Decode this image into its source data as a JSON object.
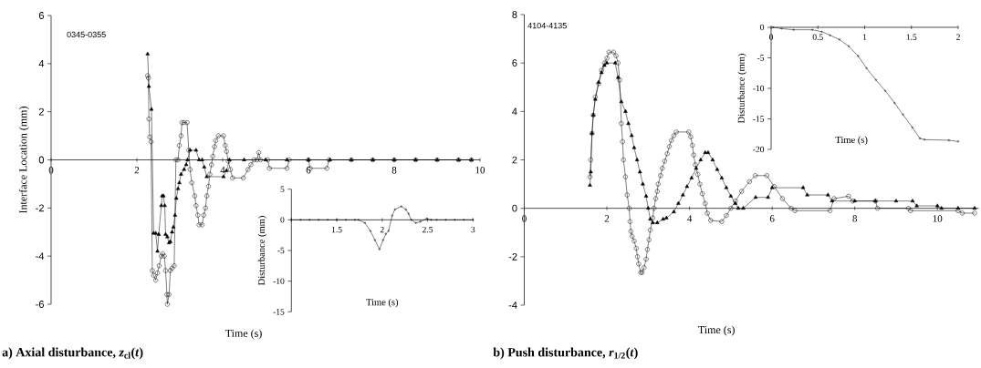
{
  "chart_data": [
    {
      "type": "line",
      "title": "a) Axial disturbance, *z*$_{cl}$(*t*)",
      "xlabel": "Time (s)",
      "ylabel": "Interface Location (mm)",
      "annotations": [
        "0345-0355"
      ],
      "xlim": [
        0,
        10
      ],
      "ylim": [
        -6,
        6
      ],
      "xticks": [
        0,
        2,
        4,
        6,
        8,
        10
      ],
      "yticks": [
        -6,
        -4,
        -2,
        0,
        2,
        4,
        6
      ],
      "series": [
        {
          "color": "#000000",
          "marker": "circle",
          "x": [
            2.25,
            2.27,
            2.28,
            2.3,
            2.33,
            2.36,
            2.39,
            2.44,
            2.48,
            2.52,
            2.57,
            2.6,
            2.64,
            2.67,
            2.7,
            2.71,
            2.75,
            2.78,
            2.82,
            2.87,
            2.91,
            2.96,
            2.99,
            3.03,
            3.05,
            3.1,
            3.17,
            3.21,
            3.24,
            3.28,
            3.35,
            3.38,
            3.42,
            3.45,
            3.52,
            3.56,
            3.6,
            3.63,
            3.67,
            3.7,
            3.74,
            3.77,
            3.81,
            3.84,
            3.9,
            4.02,
            4.06,
            4.09,
            4.13,
            4.18,
            4.23,
            4.48,
            4.59,
            4.66,
            4.73,
            4.8,
            4.84,
            4.88,
            5.05,
            5.09,
            5.5,
            5.55,
            6.0,
            6.04,
            6.43,
            6.48,
            7.0,
            7.5,
            8.0,
            8.5,
            9.0,
            9.5,
            9.8
          ],
          "values": [
            3.5,
            3.4,
            1.7,
            0.95,
            0.75,
            -4.6,
            -4.8,
            -5.0,
            -4.7,
            -4.4,
            -4.0,
            -3.9,
            -4.0,
            -4.6,
            -5.6,
            -6.0,
            -5.6,
            -4.6,
            -4.5,
            -4.4,
            0.0,
            0.0,
            0.6,
            1.0,
            1.55,
            1.55,
            1.55,
            0.4,
            -0.4,
            -0.95,
            -1.5,
            -1.9,
            -2.3,
            -2.7,
            -2.7,
            -2.3,
            -2.0,
            -1.5,
            -1.1,
            -0.6,
            -0.2,
            0.15,
            0.55,
            0.8,
            1.0,
            1.0,
            0.6,
            0.35,
            -0.05,
            -0.4,
            -0.75,
            -0.75,
            -0.4,
            -0.2,
            0.0,
            0.0,
            0.3,
            0.0,
            0.0,
            -0.35,
            -0.35,
            0.0,
            0.0,
            -0.35,
            -0.35,
            0.0,
            0,
            0,
            0,
            0,
            0,
            0,
            0
          ]
        },
        {
          "color": "#000000",
          "marker": "triangle",
          "x": [
            2.25,
            2.28,
            2.34,
            2.39,
            2.44,
            2.48,
            2.51,
            2.57,
            2.59,
            2.62,
            2.65,
            2.67,
            2.71,
            2.75,
            2.78,
            2.82,
            2.85,
            2.89,
            2.92,
            2.96,
            2.99,
            3.03,
            3.1,
            3.15,
            3.18,
            3.24,
            3.38,
            3.45,
            3.52,
            3.57,
            3.63,
            4.02,
            4.09,
            4.16,
            4.5,
            5.0,
            5.5,
            6.0,
            6.5,
            7.0,
            7.5,
            8.0,
            8.5,
            9.0,
            9.5,
            9.8
          ],
          "values": [
            4.4,
            3.05,
            2.1,
            -3.05,
            -3.05,
            -3.8,
            -3.1,
            -1.9,
            -1.5,
            -1.5,
            -1.9,
            -3.1,
            -3.2,
            -3.45,
            -3.4,
            -3.0,
            -2.8,
            -2.3,
            -1.6,
            -1.2,
            -0.95,
            -0.6,
            -0.4,
            -0.2,
            0.0,
            0.4,
            0.4,
            0.0,
            0.0,
            -0.3,
            -0.7,
            -0.7,
            -0.45,
            0.0,
            0,
            0,
            0,
            0,
            0,
            0,
            0,
            0,
            0,
            0,
            0,
            0
          ]
        }
      ]
    },
    {
      "type": "line",
      "xlabel": "Time (s)",
      "ylabel": "Disturbance (mm)",
      "xlim": [
        1,
        3
      ],
      "ylim": [
        -15,
        5
      ],
      "xticks": [
        {
          "value": 1,
          "label": null
        },
        1.5,
        2,
        2.5,
        3
      ],
      "yticks": [
        -15,
        -10,
        -5,
        0,
        5
      ],
      "series": [
        {
          "color": "#000000",
          "marker": "circle",
          "x": [
            1.0,
            1.1,
            1.2,
            1.3,
            1.4,
            1.5,
            1.6,
            1.7,
            1.74,
            1.81,
            1.87,
            1.92,
            1.97,
            2.01,
            2.04,
            2.07,
            2.11,
            2.14,
            2.21,
            2.26,
            2.29,
            2.32,
            2.37,
            2.42,
            2.49,
            2.54,
            2.6,
            2.7,
            2.8,
            2.9,
            3.0
          ],
          "values": [
            0,
            0,
            0,
            0,
            0,
            0,
            0,
            0,
            0,
            -0.5,
            -1.8,
            -3.3,
            -4.8,
            -3.3,
            -2.3,
            -1.8,
            0.7,
            1.7,
            2.2,
            1.7,
            1,
            0,
            -0.5,
            -0.3,
            0.2,
            0,
            0,
            0,
            0,
            0,
            0
          ]
        }
      ]
    },
    {
      "type": "line",
      "title": "b) Push disturbance, *r*$_{1/2}$(*t*)",
      "xlabel": "Time (s)",
      "annotations": [
        "4104-4135"
      ],
      "xlim": [
        0,
        11
      ],
      "ylim": [
        -4,
        8
      ],
      "xticks": [
        0,
        2,
        4,
        6,
        8,
        10
      ],
      "yticks": [
        -4,
        -2,
        0,
        2,
        4,
        6,
        8
      ],
      "series": [
        {
          "color": "#000000",
          "marker": "circle",
          "x": [
            1.59,
            1.61,
            1.64,
            1.67,
            1.72,
            1.8,
            1.87,
            1.94,
            2.0,
            2.05,
            2.16,
            2.22,
            2.27,
            2.31,
            2.35,
            2.38,
            2.4,
            2.45,
            2.49,
            2.54,
            2.56,
            2.58,
            2.61,
            2.66,
            2.71,
            2.74,
            2.77,
            2.82,
            2.85,
            2.9,
            2.95,
            2.98,
            3.02,
            3.05,
            3.11,
            3.14,
            3.18,
            3.22,
            3.24,
            3.3,
            3.34,
            3.4,
            3.46,
            3.51,
            3.56,
            3.62,
            3.68,
            3.98,
            4.03,
            4.07,
            4.1,
            4.14,
            4.2,
            4.25,
            4.31,
            4.38,
            4.43,
            4.51,
            4.78,
            4.89,
            5.0,
            5.11,
            5.26,
            5.45,
            5.59,
            5.87,
            6.05,
            6.25,
            6.46,
            6.55,
            7.4,
            7.5,
            7.85,
            7.95,
            8.5,
            8.55,
            9.3,
            9.35,
            10.5,
            10.6,
            10.9
          ],
          "values": [
            1.3,
            2.0,
            3.1,
            3.85,
            4.6,
            5.15,
            5.7,
            6.0,
            6.2,
            6.45,
            6.45,
            6.3,
            6.0,
            5.3,
            3.5,
            2.75,
            2.0,
            1.3,
            0.55,
            0.0,
            -0.55,
            -0.95,
            -1.15,
            -1.35,
            -1.65,
            -2.0,
            -2.3,
            -2.65,
            -2.65,
            -2.45,
            -2.1,
            -1.7,
            -1.3,
            -0.9,
            -0.4,
            0.0,
            0.4,
            0.7,
            1.0,
            1.35,
            1.65,
            1.95,
            2.25,
            2.55,
            2.8,
            3.0,
            3.15,
            3.15,
            2.95,
            2.6,
            2.2,
            1.8,
            1.4,
            1.0,
            0.6,
            0.2,
            -0.2,
            -0.5,
            -0.55,
            -0.3,
            0.0,
            0.3,
            0.7,
            1.1,
            1.35,
            1.35,
            0.9,
            0.4,
            0.0,
            -0.1,
            -0.1,
            0.4,
            0.5,
            0.3,
            0.3,
            0.0,
            0.0,
            -0.1,
            -0.1,
            -0.2,
            -0.2
          ]
        },
        {
          "color": "#000000",
          "marker": "triangle",
          "x": [
            1.59,
            1.61,
            1.64,
            1.67,
            1.72,
            1.8,
            1.87,
            1.94,
            2.0,
            2.2,
            2.27,
            2.35,
            2.45,
            2.52,
            2.6,
            2.66,
            2.73,
            2.8,
            2.87,
            2.95,
            3.0,
            3.05,
            3.11,
            3.22,
            3.36,
            3.44,
            3.62,
            3.73,
            3.84,
            3.94,
            4.05,
            4.16,
            4.27,
            4.38,
            4.45,
            4.56,
            4.67,
            4.78,
            4.89,
            5.0,
            5.11,
            5.18,
            5.3,
            5.6,
            5.9,
            6.0,
            6.75,
            6.85,
            7.35,
            7.45,
            8.0,
            8.5,
            9.0,
            9.4,
            9.5,
            10.0,
            10.1,
            10.5,
            10.9
          ],
          "values": [
            0.95,
            1.5,
            3.1,
            3.85,
            4.5,
            5.2,
            5.6,
            5.9,
            6.0,
            6.0,
            5.4,
            4.4,
            4.0,
            3.5,
            3.0,
            2.5,
            2.0,
            1.5,
            1.0,
            0.5,
            0.0,
            -0.45,
            -0.6,
            -0.6,
            -0.45,
            -0.4,
            -0.15,
            0.2,
            0.55,
            0.9,
            1.25,
            1.65,
            2.0,
            2.3,
            2.3,
            2.0,
            1.6,
            1.25,
            0.85,
            0.5,
            0.2,
            0.0,
            0.0,
            0.45,
            0.45,
            0.85,
            0.85,
            0.55,
            0.55,
            0.3,
            0.3,
            0.3,
            0.3,
            0.3,
            0.1,
            0.1,
            0.0,
            0.0,
            0.0
          ]
        }
      ]
    },
    {
      "type": "line",
      "xlabel": "Time (s)",
      "ylabel": "Disturbance (mm)",
      "xlim": [
        0,
        2
      ],
      "ylim": [
        -20,
        0
      ],
      "xticks": [
        0,
        0.5,
        1,
        1.5,
        2
      ],
      "yticks": [
        -20,
        -15,
        -10,
        -5,
        0
      ],
      "series": [
        {
          "color": "#000000",
          "marker": "circle",
          "x": [
            0.02,
            0.11,
            0.24,
            0.44,
            0.54,
            0.63,
            0.73,
            0.83,
            0.93,
            1.02,
            1.12,
            1.22,
            1.32,
            1.41,
            1.51,
            1.59,
            1.64,
            1.9,
            2.0
          ],
          "values": [
            0,
            -0.2,
            -0.4,
            -0.4,
            -0.7,
            -1.3,
            -2.0,
            -3.1,
            -4.7,
            -6.7,
            -8.6,
            -10.4,
            -12.4,
            -14.3,
            -16.4,
            -18.2,
            -18.4,
            -18.5,
            -18.7
          ]
        }
      ]
    }
  ]
}
